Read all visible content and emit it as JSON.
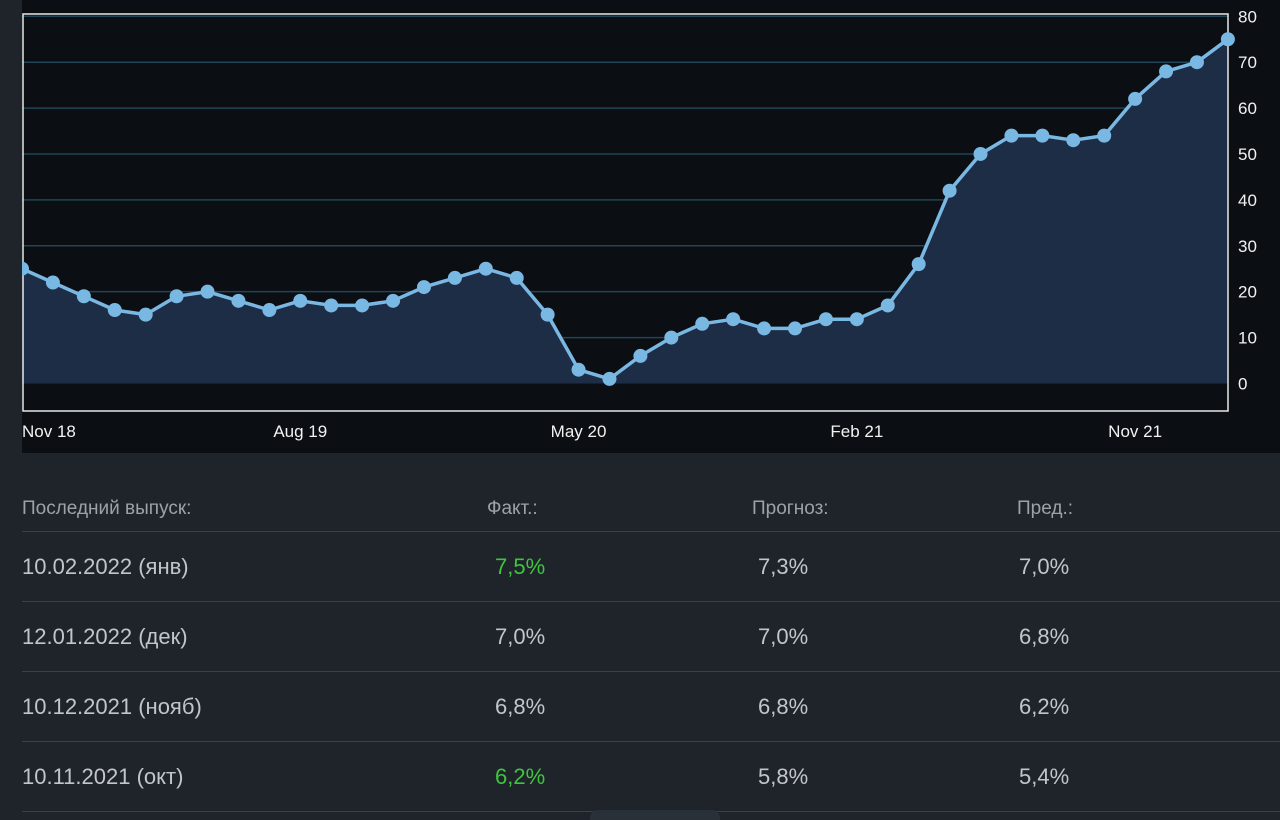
{
  "chart_data": {
    "type": "area",
    "x_ticks": [
      "Nov 18",
      "Aug 19",
      "May 20",
      "Feb 21",
      "Nov 21"
    ],
    "x_tick_indices": [
      0,
      9,
      18,
      27,
      36
    ],
    "y_ticks": [
      0,
      10,
      20,
      30,
      40,
      50,
      60,
      70,
      80
    ],
    "ylim": [
      -6,
      80.5
    ],
    "grid": true,
    "values": [
      25,
      22,
      19,
      16,
      15,
      19,
      20,
      18,
      16,
      18,
      17,
      17,
      18,
      21,
      23,
      25,
      23,
      15,
      3,
      1,
      6,
      10,
      13,
      14,
      12,
      12,
      14,
      14,
      17,
      26,
      42,
      50,
      54,
      54,
      53,
      54,
      62,
      68,
      70,
      75
    ],
    "colors": {
      "line": "#7ab8e4",
      "fill": "#1e2d46",
      "grid": "#1f4655",
      "axis": "#e8e8e8"
    }
  },
  "table": {
    "headers": [
      "Последний выпуск:",
      "Факт.:",
      "Прогноз:",
      "Пред.:"
    ],
    "rows": [
      {
        "date": "10.02.2022 (янв)",
        "fact": "7,5%",
        "forecast": "7,3%",
        "prev": "7,0%",
        "fact_highlight": true
      },
      {
        "date": "12.01.2022 (дек)",
        "fact": "7,0%",
        "forecast": "7,0%",
        "prev": "6,8%",
        "fact_highlight": false
      },
      {
        "date": "10.12.2021 (нояб)",
        "fact": "6,8%",
        "forecast": "6,8%",
        "prev": "6,2%",
        "fact_highlight": false
      },
      {
        "date": "10.11.2021 (окт)",
        "fact": "6,2%",
        "forecast": "5,8%",
        "prev": "5,4%",
        "fact_highlight": true
      }
    ]
  }
}
